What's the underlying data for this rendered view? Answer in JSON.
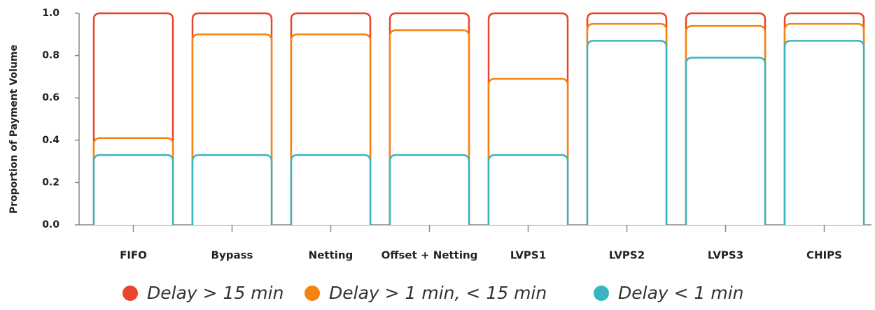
{
  "chart_data": {
    "type": "overlaid_bar",
    "ylabel": "Proportion of Payment Volume",
    "categories": [
      "FIFO",
      "Bypass",
      "Netting",
      "Offset + Netting",
      "LVPS1",
      "LVPS2",
      "LVPS3",
      "CHIPS"
    ],
    "series": [
      {
        "name": "Delay > 15 min",
        "color": "#e8452c",
        "values": [
          1.0,
          1.0,
          1.0,
          1.0,
          1.0,
          1.0,
          1.0,
          1.0
        ]
      },
      {
        "name": "Delay > 1 min, < 15 min",
        "color": "#f5830f",
        "values": [
          0.41,
          0.9,
          0.9,
          0.92,
          0.69,
          0.95,
          0.94,
          0.95
        ]
      },
      {
        "name": "Delay < 1 min",
        "color": "#3ab5bf",
        "values": [
          0.33,
          0.33,
          0.33,
          0.33,
          0.33,
          0.87,
          0.79,
          0.87
        ]
      }
    ],
    "ylim": [
      0,
      1.0
    ],
    "yticks": [
      {
        "value": 0,
        "label": "0.0"
      },
      {
        "value": 0.2,
        "label": "0.2"
      },
      {
        "value": 0.4,
        "label": "0.4"
      },
      {
        "value": 0.6,
        "label": "0.6"
      },
      {
        "value": 0.8,
        "label": "0.8"
      },
      {
        "value": 1.0,
        "label": "1.0"
      }
    ],
    "legend": "bottom"
  }
}
